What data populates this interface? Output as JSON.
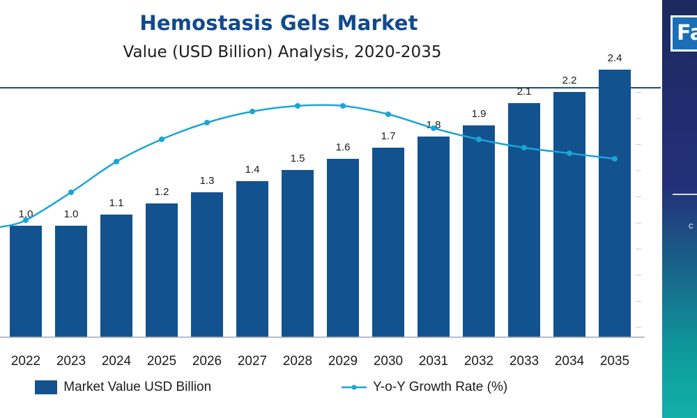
{
  "header": {
    "title": "Hemostasis Gels Market",
    "subtitle": "Value (USD Billion) Analysis, 2020-2035"
  },
  "logo": {
    "text": "Fa"
  },
  "colors": {
    "bar": "#12528f",
    "line": "#1aa5d6",
    "title": "#114a8c",
    "rule": "#1f4e79"
  },
  "legend": {
    "bars_label": "Market Value USD Billion",
    "line_label": "Y-o-Y Growth Rate (%)"
  },
  "chart_data": {
    "type": "bar",
    "title": "Hemostasis Gels Market",
    "subtitle": "Value (USD Billion) Analysis, 2020-2035",
    "categories": [
      "2022",
      "2023",
      "2024",
      "2025",
      "2026",
      "2027",
      "2028",
      "2029",
      "2030",
      "2031",
      "2032",
      "2033",
      "2034",
      "2035"
    ],
    "series": [
      {
        "name": "Market Value USD Billion",
        "type": "bar",
        "values": [
          1.0,
          1.0,
          1.1,
          1.2,
          1.3,
          1.4,
          1.5,
          1.6,
          1.7,
          1.8,
          1.9,
          2.1,
          2.2,
          2.4
        ],
        "labels": [
          "1.0",
          "1.0",
          "1.1",
          "1.2",
          "1.3",
          "1.4",
          "1.5",
          "1.6",
          "1.7",
          "1.8",
          "1.9",
          "2.1",
          "2.2",
          "2.4"
        ]
      },
      {
        "name": "Y-o-Y Growth Rate (%)",
        "type": "line",
        "values": [
          4.2,
          5.2,
          6.3,
          7.1,
          7.7,
          8.1,
          8.3,
          8.3,
          8.0,
          7.5,
          7.1,
          6.8,
          6.6,
          6.4
        ]
      }
    ],
    "bar_ylim": [
      0,
      2.5
    ],
    "line_ylim": [
      0,
      10
    ],
    "legend_position": "bottom",
    "grid": false
  }
}
